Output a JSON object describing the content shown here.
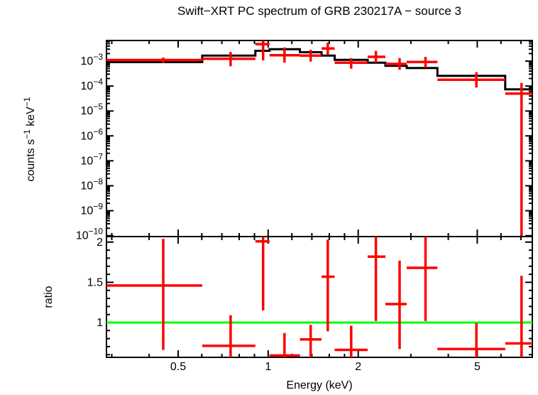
{
  "title": "Swift−XRT PC spectrum of GRB 230217A − source 3",
  "colors": {
    "data": "#ff0000",
    "model": "#000000",
    "ratio_reference_line": "#00ff00",
    "axis": "#000000",
    "background": "#ffffff"
  },
  "axes": {
    "x": {
      "label": "Energy (keV)",
      "scale": "log",
      "min": 0.288,
      "max": 7.64,
      "major_ticks": [
        {
          "value": 0.5,
          "label": "0.5"
        },
        {
          "value": 1,
          "label": "1"
        },
        {
          "value": 2,
          "label": "2"
        },
        {
          "value": 5,
          "label": "5"
        }
      ],
      "minor_ticks": [
        0.3,
        0.4,
        0.6,
        0.7,
        0.8,
        0.9,
        1.2,
        1.4,
        1.6,
        1.8,
        3,
        4,
        6,
        7
      ]
    },
    "y_top": {
      "label_parts": [
        {
          "t": "counts s"
        },
        {
          "t": "−1",
          "sup": true
        },
        {
          "t": " keV"
        },
        {
          "t": "−1",
          "sup": true
        }
      ],
      "scale": "log",
      "min": 9.2e-11,
      "max": 0.0067,
      "major_ticks": [
        {
          "value": 0.001,
          "base": "10",
          "exp": "−3"
        },
        {
          "value": 0.0001,
          "base": "10",
          "exp": "−4"
        },
        {
          "value": 1e-05,
          "base": "10",
          "exp": "−5"
        },
        {
          "value": 1e-06,
          "base": "10",
          "exp": "−6"
        },
        {
          "value": 1e-07,
          "base": "10",
          "exp": "−7"
        },
        {
          "value": 1e-08,
          "base": "10",
          "exp": "−8"
        },
        {
          "value": 1e-09,
          "base": "10",
          "exp": "−9"
        },
        {
          "value": 1e-10,
          "base": "10",
          "exp": "−10"
        }
      ]
    },
    "y_bottom": {
      "label": "ratio",
      "scale": "linear",
      "min": 0.567,
      "max": 2.069,
      "major_ticks": [
        {
          "value": 1,
          "label": "1"
        },
        {
          "value": 1.5,
          "label": "1.5"
        },
        {
          "value": 2,
          "label": "2"
        }
      ],
      "minor_tick_step": 0.1
    }
  },
  "chart_data": [
    {
      "type": "scatter",
      "name": "spectrum",
      "x_unit": "keV",
      "y_unit": "counts s-1 keV-1",
      "points": [
        {
          "e": 0.446,
          "elo": 0.288,
          "ehi": 0.602,
          "y": 0.0011,
          "ylo": 0.00085,
          "yhi": 0.00139
        },
        {
          "e": 0.749,
          "elo": 0.602,
          "ehi": 0.906,
          "y": 0.00124,
          "ylo": 0.00062,
          "yhi": 0.0023
        },
        {
          "e": 0.962,
          "elo": 0.906,
          "ehi": 1.011,
          "y": 0.0048,
          "ylo": 0.00107,
          "yhi": 0.0065
        },
        {
          "e": 1.134,
          "elo": 1.011,
          "ehi": 1.277,
          "y": 0.00172,
          "ylo": 0.00086,
          "yhi": 0.00355
        },
        {
          "e": 1.387,
          "elo": 1.277,
          "ehi": 1.508,
          "y": 0.00166,
          "ylo": 0.00096,
          "yhi": 0.00286
        },
        {
          "e": 1.582,
          "elo": 1.508,
          "ehi": 1.668,
          "y": 0.00319,
          "ylo": 0.00184,
          "yhi": 0.0055
        },
        {
          "e": 1.895,
          "elo": 1.668,
          "ehi": 2.151,
          "y": 0.00086,
          "ylo": 0.0005,
          "yhi": 0.00133
        },
        {
          "e": 2.292,
          "elo": 2.151,
          "ehi": 2.465,
          "y": 0.00148,
          "ylo": 0.00086,
          "yhi": 0.00255
        },
        {
          "e": 2.751,
          "elo": 2.465,
          "ehi": 2.904,
          "y": 0.00077,
          "ylo": 0.00045,
          "yhi": 0.00133
        },
        {
          "e": 3.357,
          "elo": 2.904,
          "ehi": 3.679,
          "y": 0.00092,
          "ylo": 0.00055,
          "yhi": 0.00148
        },
        {
          "e": 4.966,
          "elo": 3.679,
          "ehi": 6.2,
          "y": 0.000178,
          "ylo": 8.7e-05,
          "yhi": 0.00036
        },
        {
          "e": 7.031,
          "elo": 6.2,
          "ehi": 7.639,
          "y": 5e-05,
          "ylo": 1e-10,
          "yhi": 0.000133
        }
      ],
      "model_steps": [
        {
          "elo": 0.288,
          "ehi": 0.602,
          "y": 0.00091
        },
        {
          "elo": 0.602,
          "ehi": 0.906,
          "y": 0.00166
        },
        {
          "elo": 0.906,
          "ehi": 1.011,
          "y": 0.00259
        },
        {
          "elo": 1.011,
          "ehi": 1.277,
          "y": 0.00299
        },
        {
          "elo": 1.277,
          "ehi": 1.508,
          "y": 0.00227
        },
        {
          "elo": 1.508,
          "ehi": 1.668,
          "y": 0.00166
        },
        {
          "elo": 1.668,
          "ehi": 2.151,
          "y": 0.00112
        },
        {
          "elo": 2.151,
          "ehi": 2.465,
          "y": 0.00086
        },
        {
          "elo": 2.465,
          "ehi": 2.904,
          "y": 0.00065
        },
        {
          "elo": 2.904,
          "ehi": 3.679,
          "y": 0.00053
        },
        {
          "elo": 3.679,
          "ehi": 6.2,
          "y": 0.000256
        },
        {
          "elo": 6.2,
          "ehi": 7.639,
          "y": 7.4e-05
        }
      ]
    },
    {
      "type": "scatter",
      "name": "ratio",
      "reference_line": {
        "y": 1,
        "color": "#00ff00"
      },
      "points": [
        {
          "e": 0.446,
          "elo": 0.288,
          "ehi": 0.602,
          "r": 1.46,
          "rlo": 0.66,
          "rhi": 2.04
        },
        {
          "e": 0.749,
          "elo": 0.602,
          "ehi": 0.906,
          "r": 0.71,
          "rlo": 0.567,
          "rhi": 1.09
        },
        {
          "e": 0.962,
          "elo": 0.906,
          "ehi": 1.011,
          "r": 2.01,
          "rlo": 1.15,
          "rhi": 2.069
        },
        {
          "e": 1.134,
          "elo": 1.011,
          "ehi": 1.277,
          "r": 0.59,
          "rlo": 0.567,
          "rhi": 0.87
        },
        {
          "e": 1.387,
          "elo": 1.277,
          "ehi": 1.508,
          "r": 0.79,
          "rlo": 0.567,
          "rhi": 0.97
        },
        {
          "e": 1.582,
          "elo": 1.508,
          "ehi": 1.668,
          "r": 1.57,
          "rlo": 0.89,
          "rhi": 2.03
        },
        {
          "e": 1.895,
          "elo": 1.668,
          "ehi": 2.151,
          "r": 0.66,
          "rlo": 0.567,
          "rhi": 0.96
        },
        {
          "e": 2.292,
          "elo": 2.151,
          "ehi": 2.465,
          "r": 1.82,
          "rlo": 1.02,
          "rhi": 2.069
        },
        {
          "e": 2.751,
          "elo": 2.465,
          "ehi": 2.904,
          "r": 1.23,
          "rlo": 0.67,
          "rhi": 1.77
        },
        {
          "e": 3.357,
          "elo": 2.904,
          "ehi": 3.679,
          "r": 1.68,
          "rlo": 1.02,
          "rhi": 2.069
        },
        {
          "e": 4.966,
          "elo": 3.679,
          "ehi": 6.2,
          "r": 0.67,
          "rlo": 0.567,
          "rhi": 0.99
        },
        {
          "e": 7.031,
          "elo": 6.2,
          "ehi": 7.639,
          "r": 0.74,
          "rlo": 0.567,
          "rhi": 1.58
        }
      ]
    }
  ]
}
